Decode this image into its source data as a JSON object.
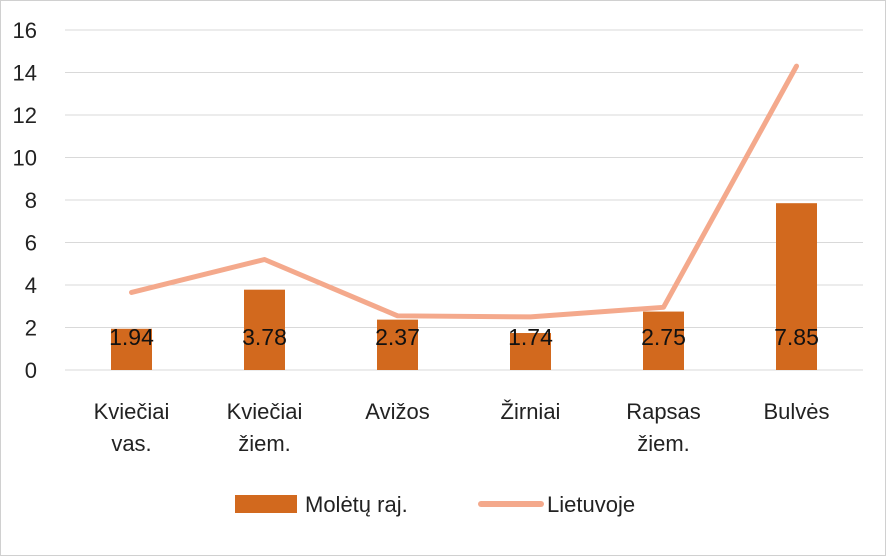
{
  "chart_data": {
    "type": "bar",
    "categories": [
      [
        "Kviečiai",
        "vas."
      ],
      [
        "Kviečiai",
        "žiem."
      ],
      [
        "Avižos"
      ],
      [
        "Žirniai"
      ],
      [
        "Rapsas",
        "žiem."
      ],
      [
        "Bulvės"
      ]
    ],
    "series": [
      {
        "name": "Molėtų raj.",
        "type": "bar",
        "color": "#d2691e",
        "values": [
          1.94,
          3.78,
          2.37,
          1.74,
          2.75,
          7.85
        ],
        "labels": [
          "1.94",
          "3.78",
          "2.37",
          "1.74",
          "2.75",
          "7.85"
        ]
      },
      {
        "name": "Lietuvoje",
        "type": "line",
        "color": "#f4a98c",
        "values": [
          3.65,
          5.2,
          2.55,
          2.5,
          2.95,
          14.3
        ]
      }
    ],
    "yticks": [
      "0",
      "2",
      "4",
      "6",
      "8",
      "10",
      "12",
      "14",
      "16"
    ],
    "ylim": [
      0,
      16
    ],
    "grid": true,
    "legend": "bottom"
  }
}
